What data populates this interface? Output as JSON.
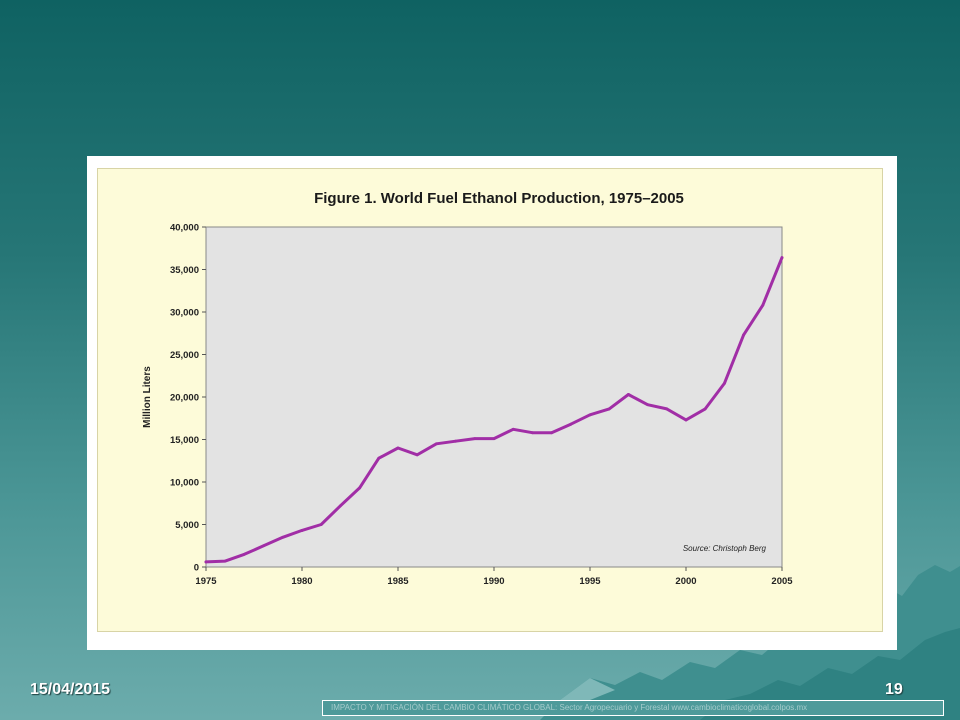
{
  "slide": {
    "date": "15/04/2015",
    "number": "19",
    "footer_credit": "IMPACTO Y MITIGACIÓN DEL CAMBIO CLIMÁTICO GLOBAL: Sector Agropecuario y Forestal www.cambioclimaticoglobal.colpos.mx",
    "colors": {
      "background_top": "#0f6262",
      "background_bottom": "#6cacac"
    }
  },
  "chart_data": {
    "type": "line",
    "title": "Figure 1. World Fuel Ethanol Production, 1975–2005",
    "xlabel": "",
    "ylabel": "Million Liters",
    "source_note": "Source:   Christoph Berg",
    "xlim": [
      1975,
      2005
    ],
    "ylim": [
      0,
      40000
    ],
    "x_ticks": [
      1975,
      1980,
      1985,
      1990,
      1995,
      2000,
      2005
    ],
    "x_tick_labels": [
      "1975",
      "1980",
      "1985",
      "1990",
      "1995",
      "2000",
      "2005"
    ],
    "y_ticks": [
      0,
      5000,
      10000,
      15000,
      20000,
      25000,
      30000,
      35000,
      40000
    ],
    "y_tick_labels": [
      "0",
      "5,000",
      "10,000",
      "15,000",
      "20,000",
      "25,000",
      "30,000",
      "35,000",
      "40,000"
    ],
    "grid": false,
    "legend": "none",
    "series": [
      {
        "color": "#a12ea6",
        "x": [
          1975,
          1976,
          1977,
          1978,
          1979,
          1980,
          1981,
          1982,
          1983,
          1984,
          1985,
          1986,
          1987,
          1988,
          1989,
          1990,
          1991,
          1992,
          1993,
          1994,
          1995,
          1996,
          1997,
          1998,
          1999,
          2000,
          2001,
          2002,
          2003,
          2004,
          2005
        ],
        "values": [
          600,
          700,
          1500,
          2500,
          3500,
          4300,
          5000,
          7200,
          9300,
          12800,
          14000,
          13200,
          14500,
          14800,
          15100,
          15100,
          16200,
          15800,
          15800,
          16800,
          17900,
          18600,
          20300,
          19100,
          18600,
          17300,
          18600,
          21600,
          27300,
          30800,
          36400
        ]
      }
    ],
    "colors": {
      "panel": "#fdfbd9",
      "plot_area": "#e3e3e3",
      "frame": "#888888"
    }
  }
}
